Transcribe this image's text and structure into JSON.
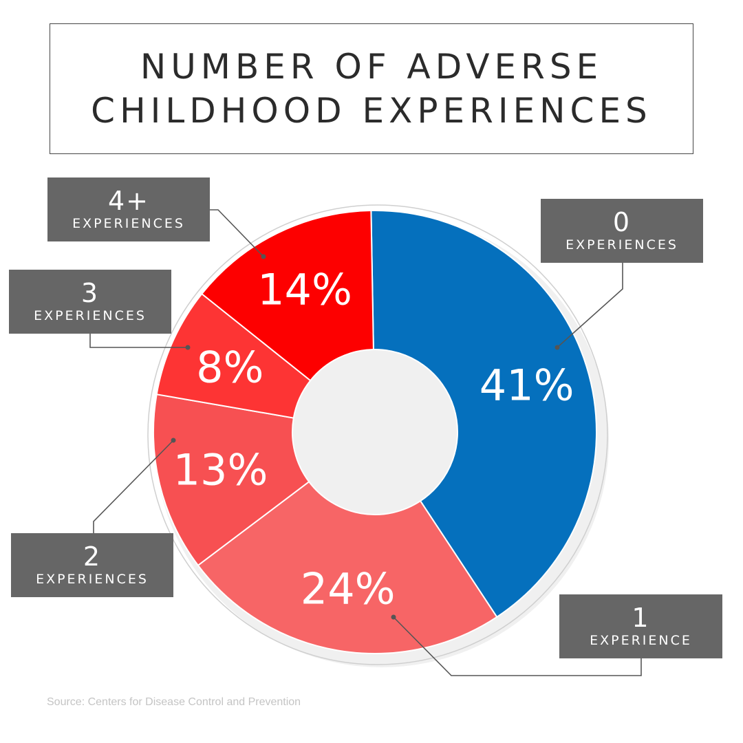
{
  "title": {
    "line1": "NUMBER OF ADVERSE",
    "line2": "CHILDHOOD EXPERIENCES"
  },
  "chart_data": {
    "type": "pie",
    "title": "NUMBER OF ADVERSE CHILDHOOD EXPERIENCES",
    "categories": [
      "0 EXPERIENCES",
      "1 EXPERIENCE",
      "2 EXPERIENCES",
      "3 EXPERIENCES",
      "4+ EXPERIENCES"
    ],
    "values": [
      41,
      24,
      13,
      8,
      14
    ],
    "value_labels": [
      "41%",
      "24%",
      "13%",
      "8%",
      "14%"
    ],
    "colors": [
      "#0570bd",
      "#f76566",
      "#f75052",
      "#fd3434",
      "#fd0000"
    ],
    "donut": true
  },
  "callouts": [
    {
      "number": "0",
      "text": "EXPERIENCES"
    },
    {
      "number": "1",
      "text": "EXPERIENCE"
    },
    {
      "number": "2",
      "text": "EXPERIENCES"
    },
    {
      "number": "3",
      "text": "EXPERIENCES"
    },
    {
      "number": "4+",
      "text": "EXPERIENCES"
    }
  ],
  "source": "Source: Centers for Disease Control and Prevention"
}
